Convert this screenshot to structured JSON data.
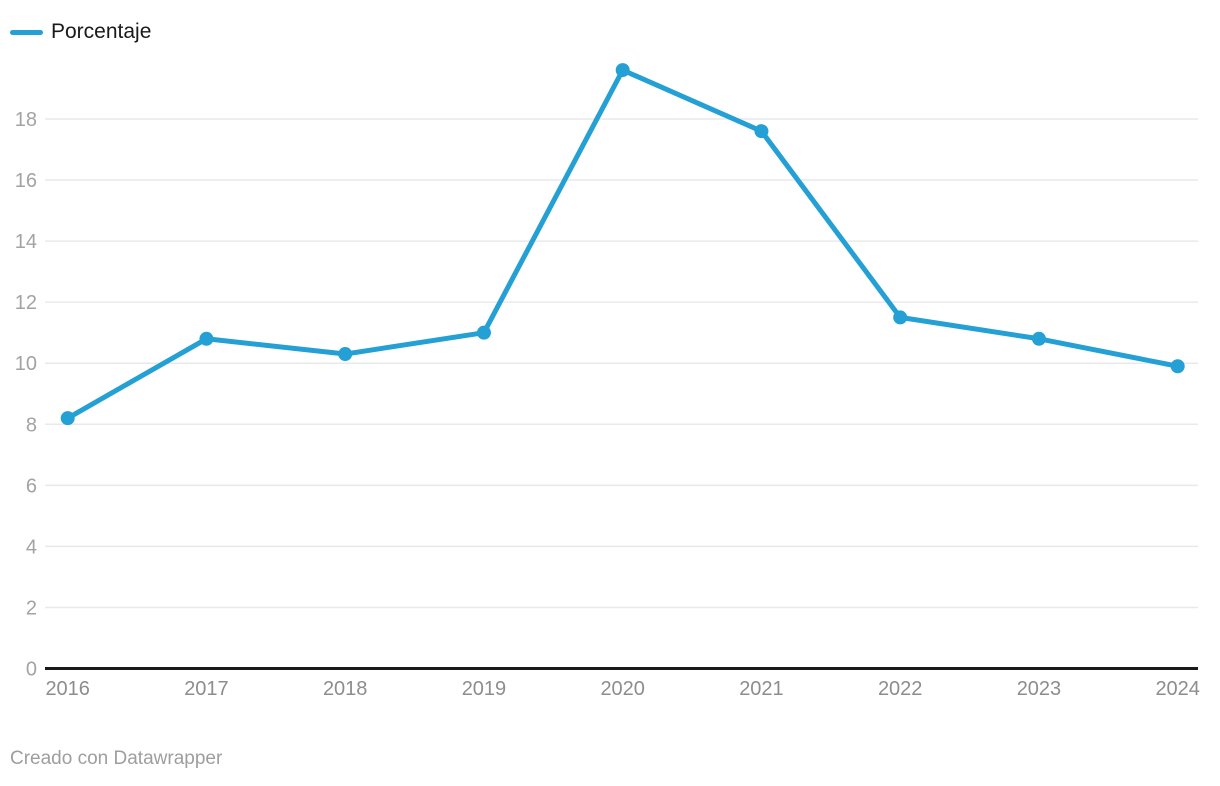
{
  "colors": {
    "line": "#24a0d4",
    "gridline": "#e9e9e9",
    "baseline": "#1a1a1a",
    "y_tick_text": "#a3a3a3",
    "x_tick_text": "#8d8d8d",
    "legend_text": "#1a1a1a",
    "footer_text": "#9e9e9e",
    "background": "#ffffff"
  },
  "legend": {
    "label": "Porcentaje"
  },
  "footer": {
    "credit": "Creado con Datawrapper"
  },
  "chart_data": {
    "type": "line",
    "categories": [
      "2016",
      "2017",
      "2018",
      "2019",
      "2020",
      "2021",
      "2022",
      "2023",
      "2024"
    ],
    "series": [
      {
        "name": "Porcentaje",
        "values": [
          8.2,
          10.8,
          10.3,
          11.0,
          19.6,
          17.6,
          11.5,
          10.8,
          9.9
        ]
      }
    ],
    "title": "",
    "xlabel": "",
    "ylabel": "",
    "ylim": [
      0,
      20
    ],
    "yticks": [
      0,
      2,
      4,
      6,
      8,
      10,
      12,
      14,
      16,
      18
    ],
    "grid": true,
    "legend_position": "top-left",
    "point_markers": true
  }
}
